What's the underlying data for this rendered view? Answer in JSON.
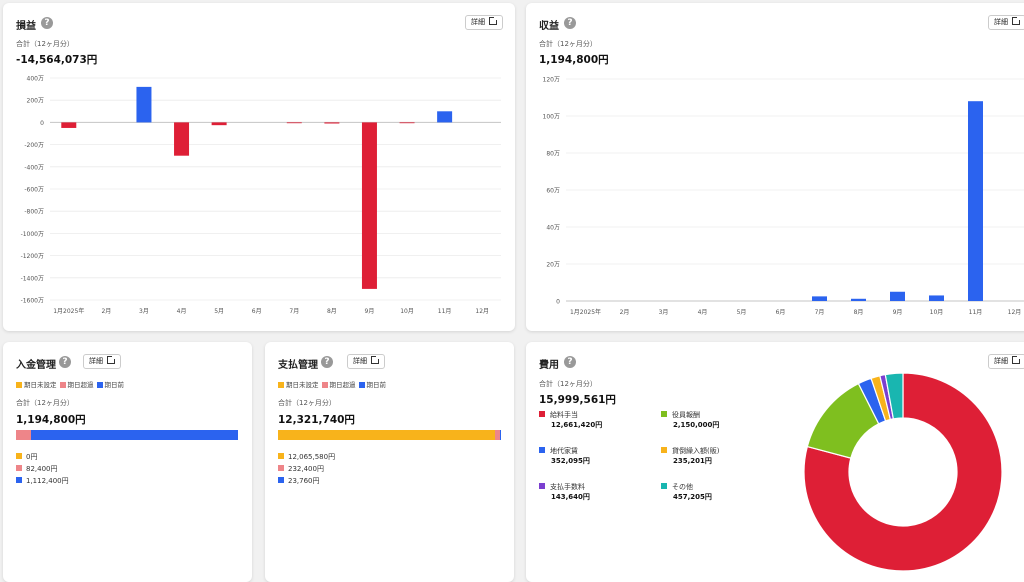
{
  "colors": {
    "red": "#de1f36",
    "blue": "#2b63ef",
    "orange": "#f8b31b",
    "pink": "#ee8589",
    "green": "#7fbf1f",
    "purple": "#7b3fd0",
    "teal": "#19b6b0",
    "grid": "#ebebeb"
  },
  "common": {
    "total_label": "合計（12ヶ月分）",
    "detail_label": "詳細",
    "help_glyph": "?"
  },
  "pnl": {
    "title": "損益",
    "total": "-14,564,073円"
  },
  "revenue": {
    "title": "収益",
    "total": "1,194,800円"
  },
  "deposit": {
    "title": "入金管理",
    "total": "1,194,800円",
    "legend": [
      "期日未設定",
      "期日超過",
      "期日前"
    ],
    "rows": [
      {
        "value": "0円",
        "color": "#f8b31b",
        "share": 0.0
      },
      {
        "value": "82,400円",
        "color": "#ee8589",
        "share": 0.069
      },
      {
        "value": "1,112,400円",
        "color": "#2b63ef",
        "share": 0.931
      }
    ]
  },
  "payment": {
    "title": "支払管理",
    "total": "12,321,740円",
    "legend": [
      "期日未設定",
      "期日超過",
      "期日前"
    ],
    "rows": [
      {
        "value": "12,065,580円",
        "color": "#f8b31b",
        "share": 0.979
      },
      {
        "value": "232,400円",
        "color": "#ee8589",
        "share": 0.019
      },
      {
        "value": "23,760円",
        "color": "#2b63ef",
        "share": 0.002
      }
    ]
  },
  "expenses": {
    "title": "費用",
    "total": "15,999,561円",
    "items": [
      {
        "name": "給料手当",
        "value": "12,661,420円",
        "color": "#de1f36",
        "amount": 12661420
      },
      {
        "name": "役員報酬",
        "value": "2,150,000円",
        "color": "#7fbf1f",
        "amount": 2150000
      },
      {
        "name": "地代家賃",
        "value": "352,095円",
        "color": "#2b63ef",
        "amount": 352095
      },
      {
        "name": "貸倒繰入額(販)",
        "value": "235,201円",
        "color": "#f8b31b",
        "amount": 235201
      },
      {
        "name": "支払手数料",
        "value": "143,640円",
        "color": "#7b3fd0",
        "amount": 143640
      },
      {
        "name": "その他",
        "value": "457,205円",
        "color": "#19b6b0",
        "amount": 457205
      }
    ]
  },
  "chart_data": [
    {
      "type": "bar",
      "title": "損益",
      "categories": [
        "1月2025年",
        "2月",
        "3月",
        "4月",
        "5月",
        "6月",
        "7月",
        "8月",
        "9月",
        "10月",
        "11月",
        "12月"
      ],
      "values": [
        -50,
        0,
        320,
        -300,
        -25,
        0,
        -5,
        -10,
        -1500,
        -5,
        100,
        0
      ],
      "y_ticks": [
        "400万",
        "200万",
        "0",
        "-200万",
        "-400万",
        "-600万",
        "-800万",
        "-1000万",
        "-1200万",
        "-1400万",
        "-1600万"
      ],
      "ylim": [
        -1600,
        400
      ],
      "unit": "万円",
      "grid": true
    },
    {
      "type": "bar",
      "title": "収益",
      "categories": [
        "1月2025年",
        "2月",
        "3月",
        "4月",
        "5月",
        "6月",
        "7月",
        "8月",
        "9月",
        "10月",
        "11月",
        "12月"
      ],
      "values": [
        0,
        0,
        0,
        0,
        0,
        0,
        2.5,
        1.2,
        5,
        3,
        108,
        0
      ],
      "y_ticks": [
        "120万",
        "100万",
        "80万",
        "60万",
        "40万",
        "20万",
        "0"
      ],
      "ylim": [
        0,
        120
      ],
      "unit": "万円",
      "grid": true
    },
    {
      "type": "pie",
      "title": "費用",
      "donut": true,
      "labels": [
        "給料手当",
        "役員報酬",
        "地代家賃",
        "貸倒繰入額(販)",
        "支払手数料",
        "その他"
      ],
      "values": [
        12661420,
        2150000,
        352095,
        235201,
        143640,
        457205
      ]
    }
  ]
}
